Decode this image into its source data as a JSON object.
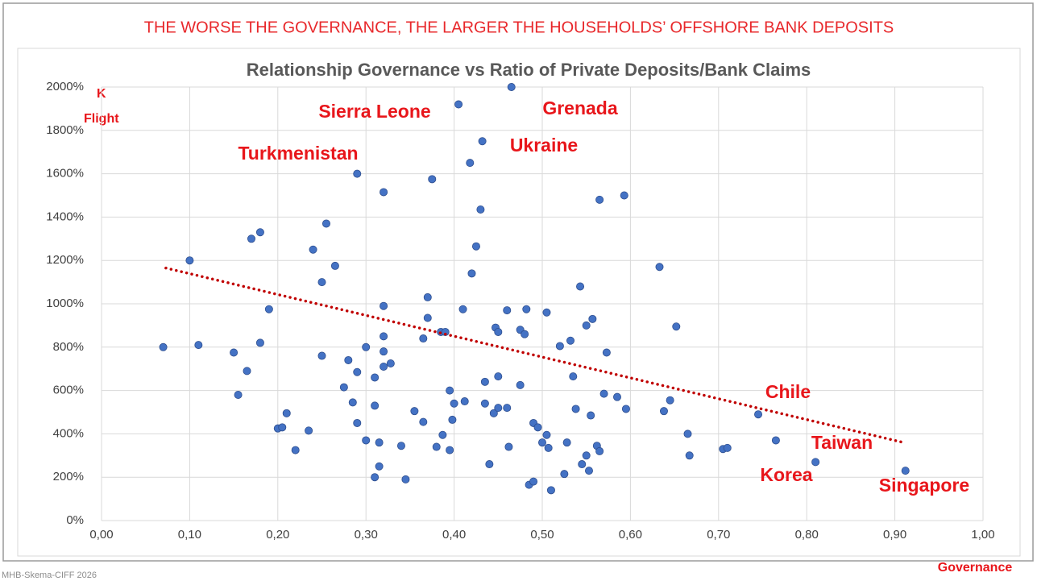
{
  "chart_data": {
    "type": "scatter",
    "headline": "THE WORSE THE GOVERNANCE, THE LARGER THE HOUSEHOLDS’ OFFSHORE BANK DEPOSITS",
    "title": "Relationship Governance vs Ratio of Private Deposits/Bank Claims",
    "xlabel": "Governance",
    "ylabel": [
      "K",
      "Flight"
    ],
    "source": "MHB-Skema-CIFF 2026",
    "annotations": [
      "Sierra Leone",
      "Grenada",
      "Turkmenistan",
      "Ukraine",
      "Chile",
      "Taiwan",
      "Korea",
      "Singapore"
    ],
    "color": "#4472c4",
    "grid": true,
    "xlim": [
      0,
      1
    ],
    "ylim": [
      0,
      2000
    ],
    "xticks": [
      {
        "value": 0,
        "label": "0,00"
      },
      {
        "value": 0.1,
        "label": "0,10"
      },
      {
        "value": 0.2,
        "label": "0,20"
      },
      {
        "value": 0.3,
        "label": "0,30"
      },
      {
        "value": 0.4,
        "label": "0,40"
      },
      {
        "value": 0.5,
        "label": "0,50"
      },
      {
        "value": 0.6,
        "label": "0,60"
      },
      {
        "value": 0.7,
        "label": "0,70"
      },
      {
        "value": 0.8,
        "label": "0,80"
      },
      {
        "value": 0.9,
        "label": "0,90"
      },
      {
        "value": 1,
        "label": "1,00"
      }
    ],
    "yticks": [
      {
        "value": 0,
        "label": "0%"
      },
      {
        "value": 200,
        "label": "200%"
      },
      {
        "value": 400,
        "label": "400%"
      },
      {
        "value": 600,
        "label": "600%"
      },
      {
        "value": 800,
        "label": "800%"
      },
      {
        "value": 1000,
        "label": "1000%"
      },
      {
        "value": 1200,
        "label": "1200%"
      },
      {
        "value": 1400,
        "label": "1400%"
      },
      {
        "value": 1600,
        "label": "1600%"
      },
      {
        "value": 1800,
        "label": "1800%"
      },
      {
        "value": 2000,
        "label": "2000%"
      }
    ],
    "x": [
      0.07,
      0.1,
      0.11,
      0.15,
      0.155,
      0.165,
      0.17,
      0.18,
      0.18,
      0.19,
      0.2,
      0.205,
      0.21,
      0.22,
      0.235,
      0.24,
      0.25,
      0.25,
      0.255,
      0.265,
      0.275,
      0.28,
      0.285,
      0.29,
      0.29,
      0.29,
      0.3,
      0.3,
      0.31,
      0.31,
      0.31,
      0.315,
      0.315,
      0.32,
      0.32,
      0.32,
      0.32,
      0.32,
      0.328,
      0.34,
      0.345,
      0.355,
      0.365,
      0.365,
      0.37,
      0.37,
      0.375,
      0.38,
      0.385,
      0.387,
      0.39,
      0.395,
      0.395,
      0.398,
      0.4,
      0.405,
      0.41,
      0.412,
      0.418,
      0.42,
      0.425,
      0.43,
      0.432,
      0.435,
      0.435,
      0.44,
      0.445,
      0.447,
      0.45,
      0.45,
      0.45,
      0.46,
      0.46,
      0.462,
      0.465,
      0.475,
      0.475,
      0.48,
      0.482,
      0.485,
      0.49,
      0.49,
      0.495,
      0.5,
      0.505,
      0.505,
      0.507,
      0.51,
      0.52,
      0.525,
      0.528,
      0.532,
      0.535,
      0.538,
      0.543,
      0.545,
      0.55,
      0.55,
      0.553,
      0.555,
      0.557,
      0.562,
      0.565,
      0.565,
      0.57,
      0.573,
      0.585,
      0.593,
      0.595,
      0.633,
      0.638,
      0.645,
      0.652,
      0.665,
      0.667,
      0.705,
      0.71,
      0.745,
      0.765,
      0.81,
      0.912
    ],
    "series": [
      {
        "values": [
          800,
          1200,
          810,
          775,
          580,
          690,
          1300,
          1330,
          820,
          975,
          425,
          430,
          495,
          325,
          415,
          1250,
          1100,
          760,
          1370,
          1175,
          615,
          740,
          545,
          1600,
          685,
          450,
          800,
          370,
          530,
          660,
          200,
          250,
          360,
          1515,
          990,
          850,
          780,
          710,
          725,
          345,
          190,
          505,
          840,
          455,
          1030,
          935,
          1575,
          340,
          870,
          395,
          870,
          600,
          325,
          465,
          540,
          1920,
          975,
          550,
          1650,
          1140,
          1265,
          1435,
          1750,
          540,
          640,
          260,
          495,
          890,
          870,
          665,
          520,
          520,
          970,
          340,
          2000,
          880,
          625,
          860,
          975,
          165,
          180,
          450,
          430,
          360,
          395,
          960,
          335,
          140,
          805,
          215,
          360,
          830,
          665,
          515,
          1080,
          260,
          900,
          300,
          230,
          485,
          930,
          345,
          320,
          1480,
          585,
          775,
          570,
          1500,
          515,
          1170,
          505,
          555,
          895,
          400,
          300,
          330,
          335,
          490,
          370,
          270,
          230
        ]
      }
    ],
    "trendline": {
      "x": [
        0.073,
        0.91
      ],
      "y": [
        1165,
        360
      ],
      "color": "#c00000"
    }
  }
}
